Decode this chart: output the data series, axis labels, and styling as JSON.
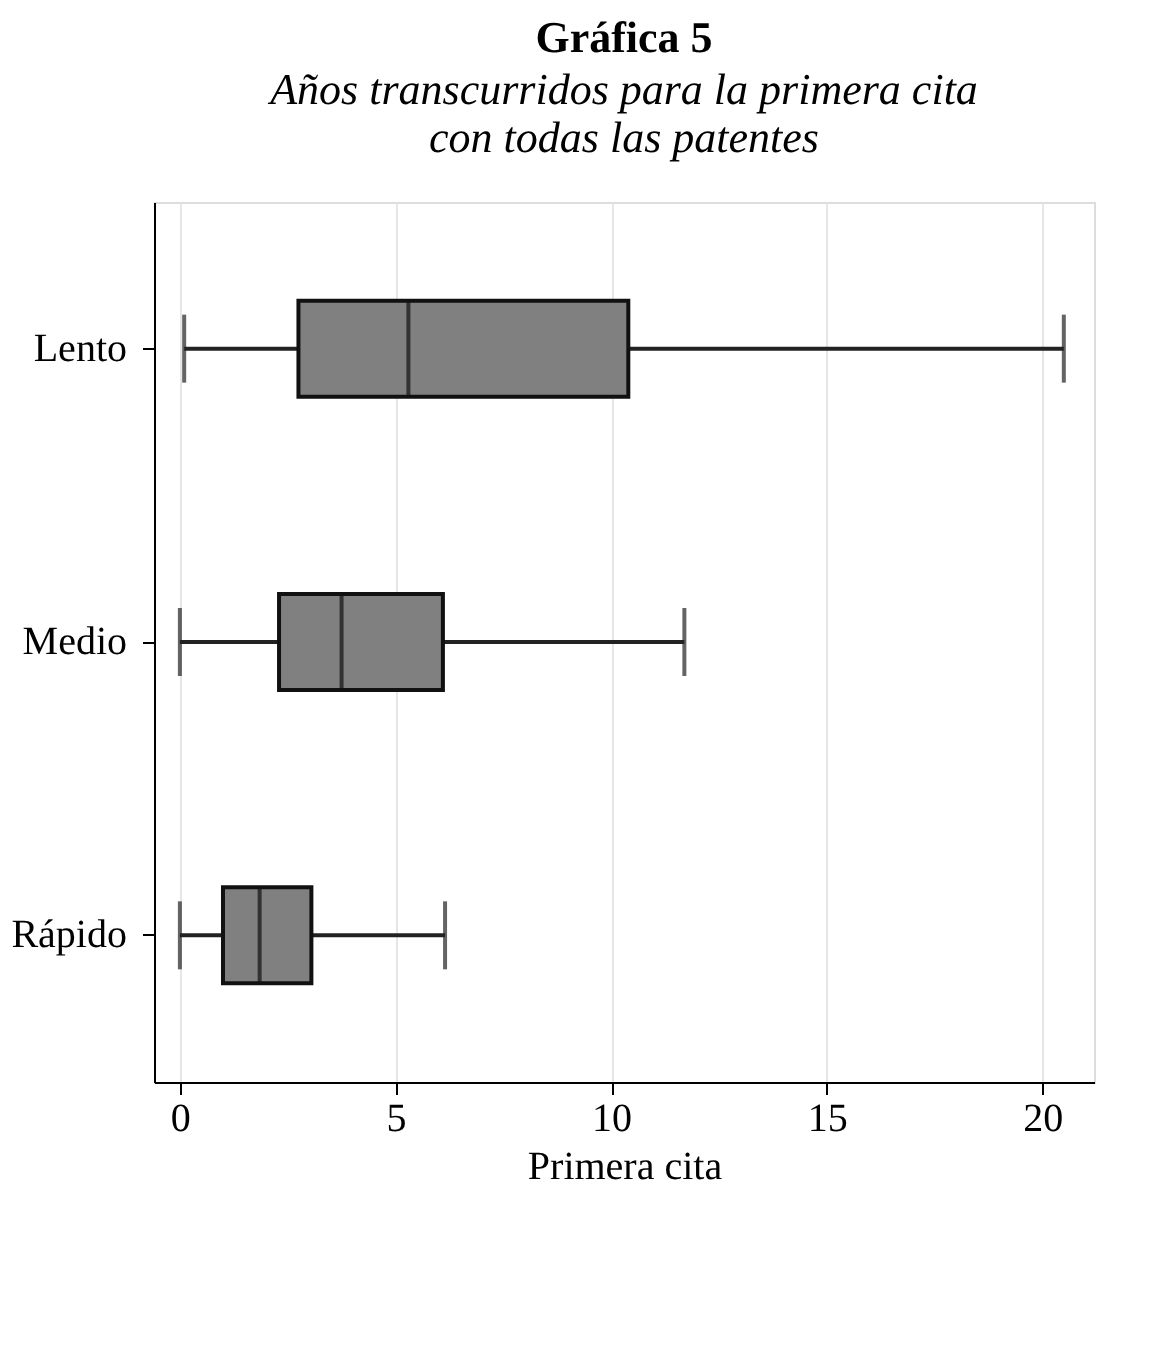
{
  "chart_data": {
    "type": "box",
    "orientation": "horizontal",
    "title": "Gráfica 5",
    "subtitle": "Años transcurridos para la primera cita\ncon todas las patentes",
    "xlabel": "Primera cita",
    "categories": [
      "Lento",
      "Medio",
      "Rápido"
    ],
    "boxes": [
      {
        "low": 0.1,
        "q1": 2.75,
        "median": 5.3,
        "q3": 10.4,
        "high": 20.5
      },
      {
        "low": 0,
        "q1": 2.3,
        "median": 3.75,
        "q3": 6.1,
        "high": 11.7
      },
      {
        "low": 0,
        "q1": 1.0,
        "median": 1.85,
        "q3": 3.05,
        "high": 6.15
      }
    ],
    "color": "#808080",
    "xlim": [
      -0.6,
      21.2
    ],
    "xticks": [
      0,
      5,
      10,
      15,
      20
    ],
    "grid": "x"
  }
}
